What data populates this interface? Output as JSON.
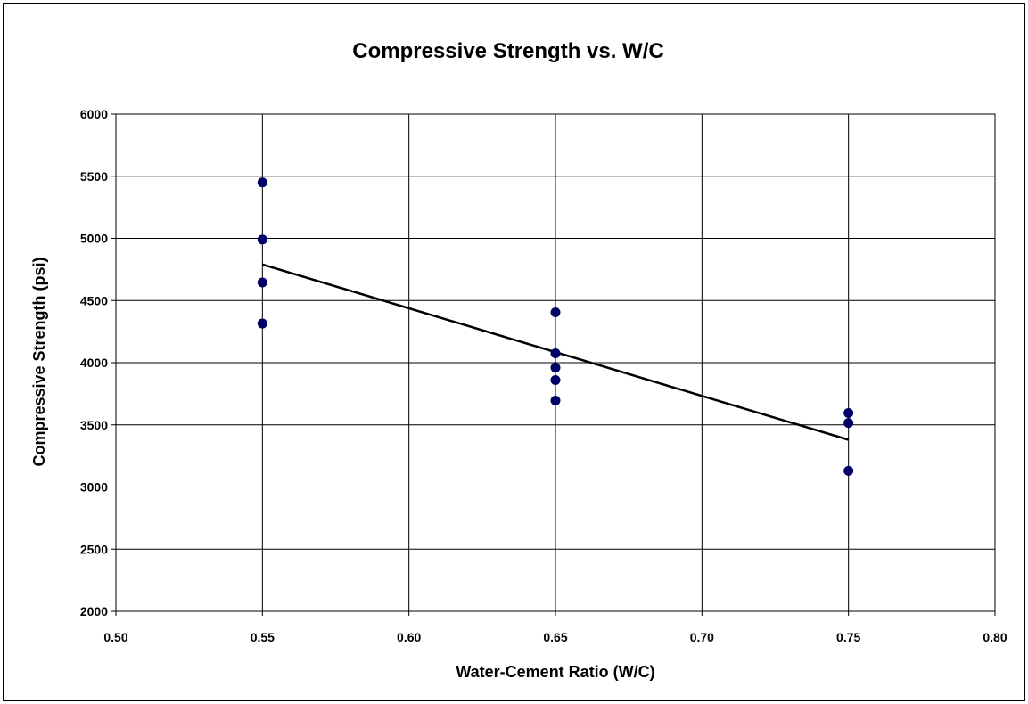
{
  "chart_data": {
    "type": "scatter",
    "title": "Compressive Strength vs. W/C",
    "xlabel": "Water-Cement Ratio (W/C)",
    "ylabel": "Compressive Strength (psi)",
    "xlim": [
      0.5,
      0.8
    ],
    "ylim": [
      2000,
      6000
    ],
    "x_ticks": [
      "0.50",
      "0.55",
      "0.60",
      "0.65",
      "0.70",
      "0.75",
      "0.80"
    ],
    "y_ticks": [
      "2000",
      "2500",
      "3000",
      "3500",
      "4000",
      "4500",
      "5000",
      "5500",
      "6000"
    ],
    "grid": true,
    "legend": "none",
    "series": [
      {
        "points": [
          {
            "x": 0.55,
            "y": 5450
          },
          {
            "x": 0.55,
            "y": 4990
          },
          {
            "x": 0.55,
            "y": 4645
          },
          {
            "x": 0.55,
            "y": 4315
          },
          {
            "x": 0.65,
            "y": 4405
          },
          {
            "x": 0.65,
            "y": 4075
          },
          {
            "x": 0.65,
            "y": 3960
          },
          {
            "x": 0.65,
            "y": 3860
          },
          {
            "x": 0.65,
            "y": 3695
          },
          {
            "x": 0.75,
            "y": 3595
          },
          {
            "x": 0.75,
            "y": 3515
          },
          {
            "x": 0.75,
            "y": 3130
          }
        ],
        "color": "#000066"
      }
    ],
    "trendline": {
      "type": "linear",
      "points": [
        {
          "x": 0.55,
          "y": 4790
        },
        {
          "x": 0.75,
          "y": 3380
        }
      ],
      "color": "#000000"
    },
    "colors": {
      "marker": "#000066",
      "grid": "#000000",
      "background": "#ffffff"
    }
  }
}
